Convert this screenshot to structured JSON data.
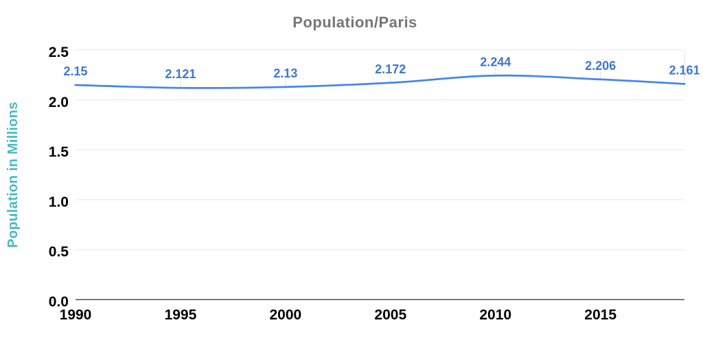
{
  "chart_data": {
    "type": "line",
    "title": "Population/Paris",
    "ylabel": "Population in Millions",
    "xlabel": "",
    "x": [
      1990,
      1995,
      2000,
      2005,
      2010,
      2015,
      2019
    ],
    "series": [
      {
        "name": "Population",
        "values": [
          2.15,
          2.121,
          2.13,
          2.172,
          2.244,
          2.206,
          2.161
        ],
        "data_labels": [
          "2.15",
          "2.121",
          "2.13",
          "2.172",
          "2.244",
          "2.206",
          "2.161"
        ]
      }
    ],
    "x_ticks": [
      {
        "label": "1990",
        "value": 1990
      },
      {
        "label": "1995",
        "value": 1995
      },
      {
        "label": "2000",
        "value": 2000
      },
      {
        "label": "2005",
        "value": 2005
      },
      {
        "label": "2010",
        "value": 2010
      },
      {
        "label": "2015",
        "value": 2015
      }
    ],
    "y_ticks": [
      {
        "label": "0.0",
        "value": 0
      },
      {
        "label": "0.5",
        "value": 0.5
      },
      {
        "label": "1.0",
        "value": 1
      },
      {
        "label": "1.5",
        "value": 1.5
      },
      {
        "label": "2.0",
        "value": 2
      },
      {
        "label": "2.5",
        "value": 2.5
      }
    ],
    "xlim": [
      1990,
      2019
    ],
    "ylim": [
      0,
      2.5
    ],
    "grid": true,
    "legend": "none",
    "colors": {
      "line": "#4285f4",
      "data_label": "#3d76d3",
      "title": "#757575",
      "ylabel": "#4ab9c4",
      "tick_label": "#000000",
      "gridline": "#e6e6e6",
      "axis_line": "#7a7a7a",
      "leader_tick": "#e0e0e0",
      "background": "#ffffff"
    }
  }
}
